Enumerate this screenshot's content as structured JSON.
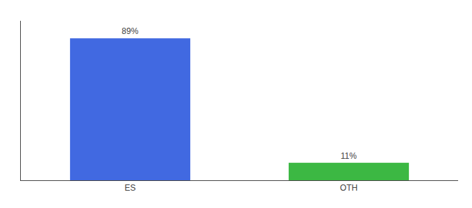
{
  "chart_data": {
    "type": "bar",
    "categories": [
      "ES",
      "OTH"
    ],
    "values": [
      89,
      11
    ],
    "colors": [
      "#4169e1",
      "#3cb843"
    ],
    "data_labels": true,
    "value_labels": [
      "89%",
      "11%"
    ],
    "ylim": [
      0,
      100
    ],
    "tick_labels": "x",
    "grid": false
  }
}
